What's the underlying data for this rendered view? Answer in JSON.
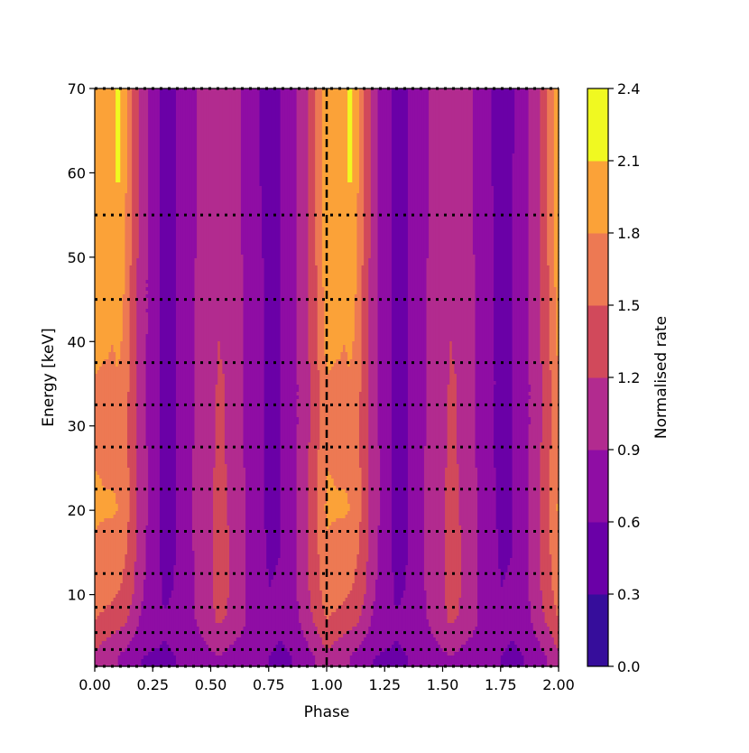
{
  "chart_data": {
    "type": "contour",
    "xlabel": "Phase",
    "ylabel": "Energy [keV]",
    "xlim": [
      0.0,
      2.0
    ],
    "ylim": [
      1.5,
      70
    ],
    "x_ticks": [
      "0.00",
      "0.25",
      "0.50",
      "0.75",
      "1.00",
      "1.25",
      "1.50",
      "1.75",
      "2.00"
    ],
    "x_tick_values": [
      0,
      0.25,
      0.5,
      0.75,
      1.0,
      1.25,
      1.5,
      1.75,
      2.0
    ],
    "y_ticks": [
      "10",
      "20",
      "30",
      "40",
      "50",
      "60",
      "70"
    ],
    "y_tick_values": [
      10,
      20,
      30,
      40,
      50,
      60,
      70
    ],
    "energy_band_edges_keV": [
      1.5,
      3.5,
      5.5,
      8.5,
      12.5,
      17.5,
      22.5,
      27.5,
      32.5,
      37.5,
      45,
      55,
      70
    ],
    "vertical_dashed_line_phase": 1.0,
    "colorbar": {
      "label": "Normalised rate",
      "levels": [
        0.0,
        0.3,
        0.6,
        0.9,
        1.2,
        1.5,
        1.8,
        2.1,
        2.4
      ],
      "tick_labels": [
        "0.0",
        "0.3",
        "0.6",
        "0.9",
        "1.2",
        "1.5",
        "1.8",
        "2.1",
        "2.4"
      ],
      "colors": [
        "#360d9b",
        "#6a00a7",
        "#8f0da4",
        "#b22b8f",
        "#d1495b",
        "#ed7953",
        "#fba238",
        "#f0f921"
      ]
    },
    "profile_phase": [
      0.0,
      0.04,
      0.08,
      0.1,
      0.12,
      0.16,
      0.2,
      0.25,
      0.3,
      0.35,
      0.4,
      0.45,
      0.5,
      0.53,
      0.56,
      0.6,
      0.65,
      0.7,
      0.75,
      0.8,
      0.85,
      0.9,
      0.95,
      1.0
    ],
    "profile_bands_keV": [
      2.5,
      4.5,
      7.0,
      10.5,
      15.0,
      20.0,
      25.0,
      30.0,
      35.0,
      41.0,
      50.0,
      62.5
    ],
    "rate_grid": [
      [
        1.1,
        1.05,
        0.95,
        0.9,
        0.85,
        0.7,
        0.6,
        0.55,
        0.55,
        0.6,
        0.7,
        0.8,
        0.85,
        0.9,
        0.85,
        0.8,
        0.75,
        0.7,
        0.6,
        0.55,
        0.6,
        0.75,
        0.9,
        1.1
      ],
      [
        1.3,
        1.2,
        1.1,
        1.05,
        1.0,
        0.9,
        0.75,
        0.65,
        0.6,
        0.65,
        0.75,
        0.85,
        0.95,
        1.0,
        1.0,
        0.9,
        0.85,
        0.75,
        0.65,
        0.6,
        0.65,
        0.85,
        1.05,
        1.3
      ],
      [
        1.5,
        1.45,
        1.4,
        1.35,
        1.3,
        1.1,
        0.85,
        0.7,
        0.62,
        0.65,
        0.8,
        0.95,
        1.1,
        1.25,
        1.2,
        1.05,
        0.9,
        0.75,
        0.62,
        0.62,
        0.75,
        1.0,
        1.25,
        1.5
      ],
      [
        1.65,
        1.6,
        1.55,
        1.52,
        1.45,
        1.25,
        0.95,
        0.75,
        0.55,
        0.62,
        0.8,
        1.0,
        1.15,
        1.35,
        1.3,
        1.1,
        0.9,
        0.72,
        0.6,
        0.62,
        0.78,
        1.05,
        1.35,
        1.65
      ],
      [
        1.75,
        1.72,
        1.7,
        1.68,
        1.6,
        1.35,
        1.0,
        0.75,
        0.52,
        0.6,
        0.8,
        1.0,
        1.15,
        1.3,
        1.28,
        1.1,
        0.9,
        0.7,
        0.58,
        0.6,
        0.78,
        1.05,
        1.4,
        1.75
      ],
      [
        1.85,
        1.82,
        1.82,
        1.8,
        1.72,
        1.4,
        1.05,
        0.78,
        0.5,
        0.58,
        0.82,
        1.0,
        1.15,
        1.28,
        1.25,
        1.1,
        0.9,
        0.68,
        0.55,
        0.6,
        0.8,
        1.05,
        1.4,
        1.85
      ],
      [
        1.8,
        1.78,
        1.78,
        1.76,
        1.7,
        1.38,
        1.05,
        0.78,
        0.5,
        0.58,
        0.82,
        1.0,
        1.15,
        1.25,
        1.22,
        1.08,
        0.88,
        0.65,
        0.55,
        0.6,
        0.8,
        1.05,
        1.4,
        1.8
      ],
      [
        1.75,
        1.72,
        1.72,
        1.7,
        1.65,
        1.35,
        1.02,
        0.75,
        0.5,
        0.58,
        0.8,
        0.98,
        1.12,
        1.22,
        1.2,
        1.05,
        0.85,
        0.65,
        0.55,
        0.6,
        0.78,
        1.02,
        1.35,
        1.75
      ],
      [
        1.78,
        1.76,
        1.78,
        1.78,
        1.72,
        1.38,
        1.02,
        0.75,
        0.5,
        0.58,
        0.8,
        0.98,
        1.1,
        1.22,
        1.2,
        1.05,
        0.85,
        0.65,
        0.55,
        0.6,
        0.78,
        1.02,
        1.35,
        1.78
      ],
      [
        1.9,
        1.85,
        1.8,
        1.85,
        1.8,
        1.4,
        1.05,
        0.75,
        0.5,
        0.58,
        0.8,
        0.98,
        1.1,
        1.2,
        1.18,
        1.05,
        0.85,
        0.65,
        0.55,
        0.6,
        0.78,
        1.05,
        1.4,
        1.9
      ],
      [
        2.0,
        1.98,
        1.95,
        1.95,
        1.9,
        1.45,
        1.05,
        0.75,
        0.5,
        0.58,
        0.78,
        0.95,
        1.08,
        1.18,
        1.15,
        1.02,
        0.85,
        0.65,
        0.55,
        0.6,
        0.78,
        1.05,
        1.45,
        2.0
      ],
      [
        2.05,
        2.05,
        2.05,
        2.2,
        2.05,
        1.5,
        1.05,
        0.75,
        0.5,
        0.58,
        0.78,
        0.95,
        1.05,
        1.15,
        1.12,
        1.0,
        0.82,
        0.62,
        0.52,
        0.58,
        0.78,
        1.05,
        1.5,
        2.05
      ]
    ]
  }
}
